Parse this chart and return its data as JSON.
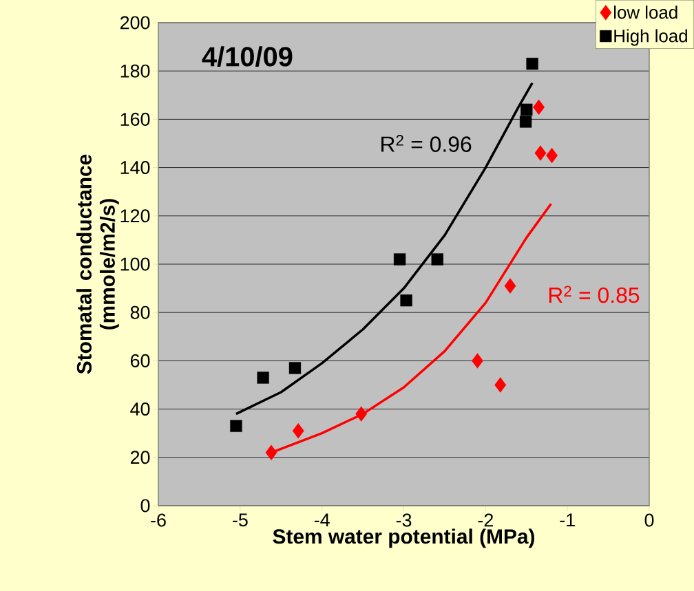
{
  "chart_data": {
    "type": "scatter",
    "title": "4/10/09",
    "xlabel": "Stem water potential (MPa)",
    "ylabel": "Stomatal conductance (mmole/m2/s)",
    "xlim": [
      -6,
      0
    ],
    "ylim": [
      0,
      200
    ],
    "xticks": [
      -6,
      -5,
      -4,
      -3,
      -2,
      -1,
      0
    ],
    "yticks": [
      0,
      20,
      40,
      60,
      80,
      100,
      120,
      140,
      160,
      180,
      200
    ],
    "grid": "y",
    "legend": "top right",
    "annotations": [
      "R$^{2}$ = 0.85",
      "R$^{2}$ = 0.96"
    ],
    "series": [
      {
        "name": "low  load",
        "color": "#ff0000",
        "marker": "diamond",
        "x": [
          -4.62,
          -4.29,
          -3.52,
          -2.1,
          -1.82,
          -1.7,
          -1.35,
          -1.33,
          -1.19
        ],
        "values": [
          22,
          31,
          38,
          60,
          50,
          91,
          165,
          146,
          145
        ]
      },
      {
        "name": "High load",
        "color": "#000000",
        "marker": "square",
        "x": [
          -5.05,
          -4.72,
          -4.33,
          -3.05,
          -2.97,
          -2.59,
          -1.43,
          -1.5,
          -1.51
        ],
        "values": [
          33,
          53,
          57,
          102,
          85,
          102,
          183,
          164,
          159
        ]
      },
      {
        "type": "line",
        "color": "#ff0000",
        "marker": "none",
        "x": [
          -4.62,
          -4,
          -3.5,
          -3,
          -2.5,
          -2,
          -1.5,
          -1.2
        ],
        "values": [
          22,
          30,
          38,
          49,
          64,
          84,
          111,
          125
        ]
      },
      {
        "type": "line",
        "color": "#000000",
        "marker": "none",
        "x": [
          -5.05,
          -4.5,
          -4,
          -3.5,
          -3,
          -2.5,
          -2,
          -1.6,
          -1.43
        ],
        "values": [
          38,
          47,
          59,
          73,
          90,
          112,
          140,
          165,
          175
        ]
      }
    ]
  }
}
